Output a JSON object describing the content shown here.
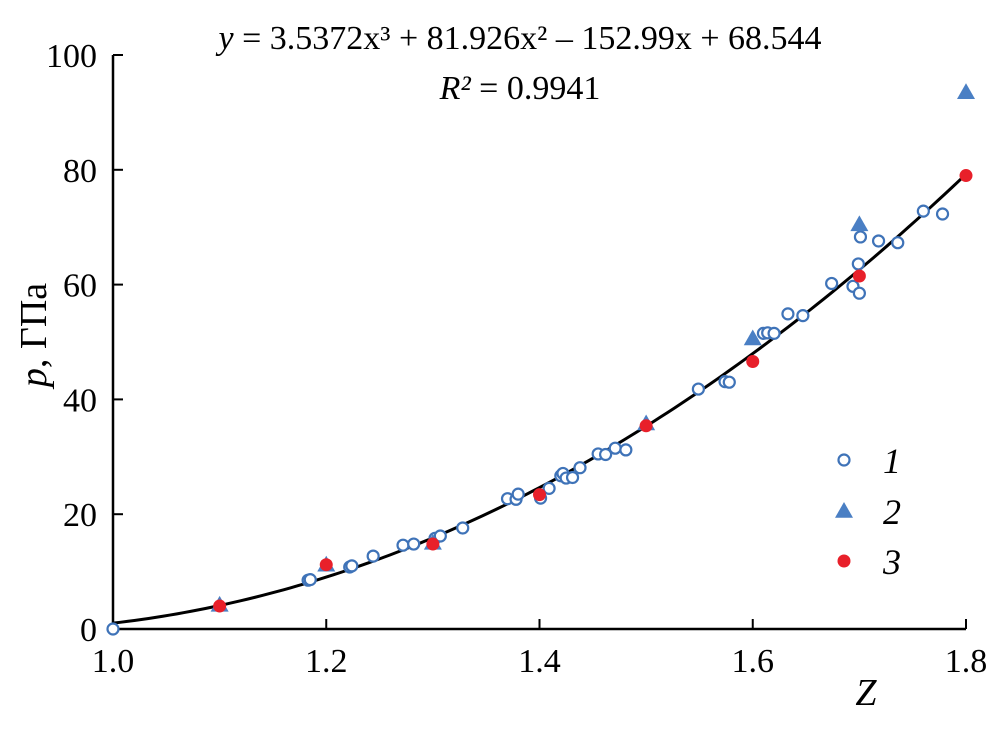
{
  "chart_data": {
    "type": "scatter",
    "title": "",
    "xlabel": "Z",
    "ylabel": "p, ГПа",
    "ylabel_var": "p",
    "ylabel_unit": ", ГПа",
    "xlim": [
      1.0,
      1.8
    ],
    "ylim": [
      0,
      100
    ],
    "x_ticks": [
      "1.0",
      "1.2",
      "1.4",
      "1.6",
      "1.8"
    ],
    "y_ticks": [
      "0",
      "20",
      "40",
      "60",
      "80",
      "100"
    ],
    "grid": false,
    "legend_position": "right",
    "equation": {
      "lhs": "y",
      "rhs": "= 3.5372x³ + 81.926x² – 152.99x + 68.544",
      "r2_label": "R²",
      "r2_value": "= 0.9941"
    },
    "fit": {
      "type": "polynomial",
      "coefficients": [
        3.5372,
        81.926,
        -152.99,
        68.544
      ],
      "x_range": [
        1.0,
        1.8
      ],
      "color": "#000000"
    },
    "series": [
      {
        "name": "1",
        "marker": "open-circle",
        "color": "#3f73b8",
        "points": [
          [
            1.0,
            0.0
          ],
          [
            1.183,
            8.5
          ],
          [
            1.185,
            8.6
          ],
          [
            1.222,
            10.8
          ],
          [
            1.224,
            11.0
          ],
          [
            1.244,
            12.7
          ],
          [
            1.272,
            14.6
          ],
          [
            1.282,
            14.8
          ],
          [
            1.302,
            15.8
          ],
          [
            1.307,
            16.2
          ],
          [
            1.328,
            17.6
          ],
          [
            1.37,
            22.7
          ],
          [
            1.378,
            22.6
          ],
          [
            1.38,
            23.5
          ],
          [
            1.401,
            22.8
          ],
          [
            1.409,
            24.5
          ],
          [
            1.42,
            26.7
          ],
          [
            1.422,
            27.1
          ],
          [
            1.425,
            26.3
          ],
          [
            1.431,
            26.4
          ],
          [
            1.438,
            28.1
          ],
          [
            1.455,
            30.5
          ],
          [
            1.462,
            30.4
          ],
          [
            1.471,
            31.5
          ],
          [
            1.481,
            31.2
          ],
          [
            1.549,
            41.8
          ],
          [
            1.574,
            43.1
          ],
          [
            1.578,
            43.0
          ],
          [
            1.61,
            51.5
          ],
          [
            1.614,
            51.6
          ],
          [
            1.62,
            51.5
          ],
          [
            1.633,
            54.9
          ],
          [
            1.647,
            54.6
          ],
          [
            1.674,
            60.2
          ],
          [
            1.694,
            59.7
          ],
          [
            1.699,
            63.6
          ],
          [
            1.7,
            58.5
          ],
          [
            1.701,
            68.3
          ],
          [
            1.718,
            67.6
          ],
          [
            1.736,
            67.3
          ],
          [
            1.76,
            72.8
          ],
          [
            1.778,
            72.3
          ]
        ]
      },
      {
        "name": "2",
        "marker": "filled-triangle",
        "color": "#4a7fc4",
        "points": [
          [
            1.1,
            4.2
          ],
          [
            1.2,
            11.2
          ],
          [
            1.3,
            15.0
          ],
          [
            1.5,
            35.8
          ],
          [
            1.6,
            50.6
          ],
          [
            1.7,
            70.5
          ],
          [
            1.8,
            93.5
          ]
        ]
      },
      {
        "name": "3",
        "marker": "filled-circle",
        "color": "#e8202a",
        "points": [
          [
            1.1,
            4.0
          ],
          [
            1.2,
            11.2
          ],
          [
            1.3,
            14.8
          ],
          [
            1.4,
            23.4
          ],
          [
            1.5,
            35.4
          ],
          [
            1.6,
            46.6
          ],
          [
            1.7,
            61.5
          ],
          [
            1.8,
            79.0
          ]
        ]
      }
    ]
  }
}
